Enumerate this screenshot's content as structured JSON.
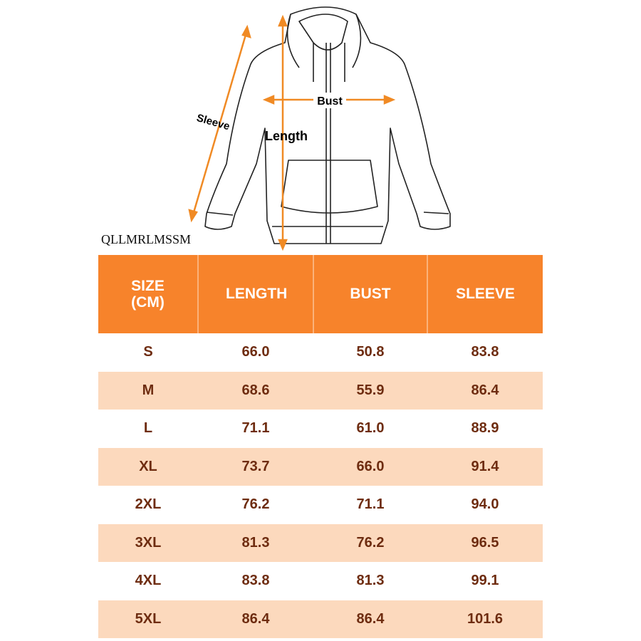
{
  "diagram": {
    "labels": {
      "sleeve": "Sleeve",
      "length": "Length",
      "bust": "Bust"
    }
  },
  "brand": "QLLMRLMSSM",
  "table": {
    "header": [
      "SIZE (CM)",
      "LENGTH",
      "BUST",
      "SLEEVE"
    ],
    "rows": [
      [
        "S",
        "66.0",
        "50.8",
        "83.8"
      ],
      [
        "M",
        "68.6",
        "55.9",
        "86.4"
      ],
      [
        "L",
        "71.1",
        "61.0",
        "88.9"
      ],
      [
        "XL",
        "73.7",
        "66.0",
        "91.4"
      ],
      [
        "2XL",
        "76.2",
        "71.1",
        "94.0"
      ],
      [
        "3XL",
        "81.3",
        "76.2",
        "96.5"
      ],
      [
        "4XL",
        "83.8",
        "81.3",
        "99.1"
      ],
      [
        "5XL",
        "86.4",
        "86.4",
        "101.6"
      ]
    ]
  }
}
